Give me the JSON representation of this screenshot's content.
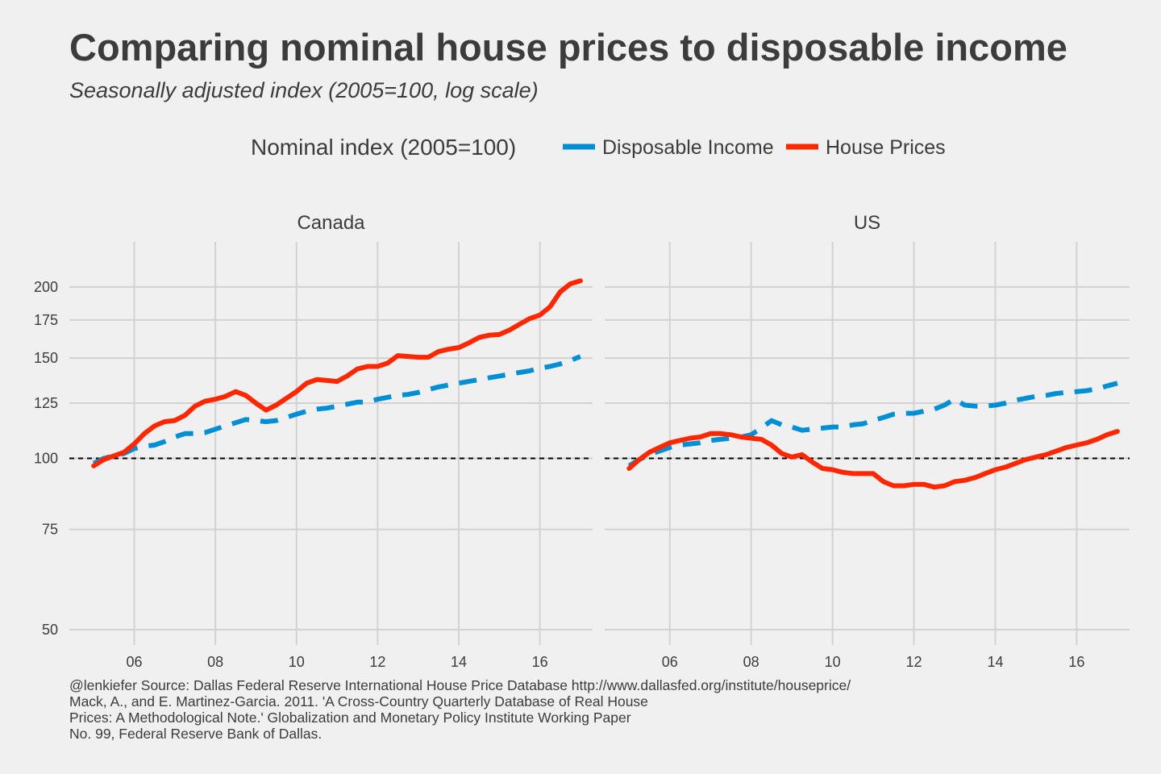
{
  "title": "Comparing nominal house prices to disposable income",
  "subtitle": "Seasonally adjusted index (2005=100, log scale)",
  "legend": {
    "title": "Nominal index (2005=100)",
    "items": [
      {
        "label": "Disposable Income",
        "color": "#008fd5",
        "dash": "dashed"
      },
      {
        "label": "House Prices",
        "color": "#ff2700",
        "dash": "solid"
      }
    ]
  },
  "caption": [
    "@lenkiefer Source: Dallas Federal Reserve International House Price Database  http://www.dallasfed.org/institute/houseprice/",
    "Mack, A., and E. Martinez-Garcia. 2011. 'A Cross-Country Quarterly Database of Real House",
    "Prices: A Methodological Note.' Globalization and Monetary Policy Institute Working Paper",
    "No. 99, Federal Reserve Bank of Dallas."
  ],
  "chart_data": {
    "type": "line",
    "y_scale": "log",
    "ylim": [
      47,
      240
    ],
    "xlim": [
      2004.4,
      2017.3
    ],
    "y_ticks": [
      50,
      75,
      100,
      125,
      150,
      175,
      200
    ],
    "x_ticks": [
      2006,
      2008,
      2010,
      2012,
      2014,
      2016
    ],
    "x_tick_labels": [
      "06",
      "08",
      "10",
      "12",
      "14",
      "16"
    ],
    "reference_line": {
      "y": 100,
      "style": "dashed",
      "color": "#000000"
    },
    "grid": true,
    "legend_position": "top",
    "panels": [
      {
        "name": "Canada",
        "series": [
          {
            "name": "Disposable Income",
            "color": "#008fd5",
            "points": [
              [
                2005.0,
                98
              ],
              [
                2005.25,
                100
              ],
              [
                2005.5,
                101
              ],
              [
                2005.75,
                102
              ],
              [
                2006.0,
                104
              ],
              [
                2006.25,
                105
              ],
              [
                2006.5,
                105.5
              ],
              [
                2006.75,
                107
              ],
              [
                2007.0,
                109
              ],
              [
                2007.25,
                110.5
              ],
              [
                2007.5,
                110.5
              ],
              [
                2007.75,
                111
              ],
              [
                2008.0,
                112.5
              ],
              [
                2008.25,
                114
              ],
              [
                2008.5,
                115.5
              ],
              [
                2008.75,
                117
              ],
              [
                2009.0,
                116.5
              ],
              [
                2009.25,
                116
              ],
              [
                2009.5,
                116.5
              ],
              [
                2009.75,
                118
              ],
              [
                2010.0,
                119.5
              ],
              [
                2010.25,
                121
              ],
              [
                2010.5,
                122
              ],
              [
                2010.75,
                122.5
              ],
              [
                2011.0,
                123.5
              ],
              [
                2011.25,
                124.5
              ],
              [
                2011.5,
                125.5
              ],
              [
                2011.75,
                125.5
              ],
              [
                2012.0,
                127
              ],
              [
                2012.25,
                128
              ],
              [
                2012.5,
                129
              ],
              [
                2012.75,
                129.5
              ],
              [
                2013.0,
                130.5
              ],
              [
                2013.25,
                132
              ],
              [
                2013.5,
                133.5
              ],
              [
                2013.75,
                134.5
              ],
              [
                2014.0,
                135.5
              ],
              [
                2014.25,
                136.5
              ],
              [
                2014.5,
                137.5
              ],
              [
                2014.75,
                138.5
              ],
              [
                2015.0,
                139.5
              ],
              [
                2015.25,
                140.5
              ],
              [
                2015.5,
                141.5
              ],
              [
                2015.75,
                142.5
              ],
              [
                2016.0,
                144
              ],
              [
                2016.25,
                145
              ],
              [
                2016.5,
                146.5
              ],
              [
                2016.75,
                148.5
              ],
              [
                2017.0,
                151
              ]
            ]
          },
          {
            "name": "House Prices",
            "color": "#ff2700",
            "points": [
              [
                2005.0,
                97
              ],
              [
                2005.25,
                99.5
              ],
              [
                2005.5,
                101
              ],
              [
                2005.75,
                102.5
              ],
              [
                2006.0,
                106
              ],
              [
                2006.25,
                110.5
              ],
              [
                2006.5,
                114
              ],
              [
                2006.75,
                116
              ],
              [
                2007.0,
                116.5
              ],
              [
                2007.25,
                119
              ],
              [
                2007.5,
                123.5
              ],
              [
                2007.75,
                126
              ],
              [
                2008.0,
                127
              ],
              [
                2008.25,
                128.5
              ],
              [
                2008.5,
                131
              ],
              [
                2008.75,
                129
              ],
              [
                2009.0,
                125
              ],
              [
                2009.25,
                121.5
              ],
              [
                2009.5,
                124
              ],
              [
                2009.75,
                127.5
              ],
              [
                2010.0,
                131
              ],
              [
                2010.25,
                135.5
              ],
              [
                2010.5,
                137.5
              ],
              [
                2010.75,
                137
              ],
              [
                2011.0,
                136.5
              ],
              [
                2011.25,
                139.5
              ],
              [
                2011.5,
                143.5
              ],
              [
                2011.75,
                145
              ],
              [
                2012.0,
                145
              ],
              [
                2012.25,
                147
              ],
              [
                2012.5,
                151.5
              ],
              [
                2012.75,
                151
              ],
              [
                2013.0,
                150.5
              ],
              [
                2013.25,
                150.5
              ],
              [
                2013.5,
                154
              ],
              [
                2013.75,
                155.5
              ],
              [
                2014.0,
                156.5
              ],
              [
                2014.25,
                159.5
              ],
              [
                2014.5,
                163
              ],
              [
                2014.75,
                164.5
              ],
              [
                2015.0,
                165
              ],
              [
                2015.25,
                168
              ],
              [
                2015.5,
                172
              ],
              [
                2015.75,
                176
              ],
              [
                2016.0,
                178.5
              ],
              [
                2016.25,
                184.5
              ],
              [
                2016.5,
                196
              ],
              [
                2016.75,
                202.5
              ],
              [
                2017.0,
                205
              ]
            ]
          }
        ]
      },
      {
        "name": "US",
        "series": [
          {
            "name": "Disposable Income",
            "color": "#008fd5",
            "points": [
              [
                2005.0,
                97
              ],
              [
                2005.25,
                99.5
              ],
              [
                2005.5,
                101.5
              ],
              [
                2005.75,
                103
              ],
              [
                2006.0,
                104.5
              ],
              [
                2006.25,
                105.5
              ],
              [
                2006.5,
                106
              ],
              [
                2006.75,
                106.5
              ],
              [
                2007.0,
                107.5
              ],
              [
                2007.25,
                108
              ],
              [
                2007.5,
                108.5
              ],
              [
                2007.75,
                109
              ],
              [
                2008.0,
                110
              ],
              [
                2008.25,
                113
              ],
              [
                2008.5,
                116.5
              ],
              [
                2008.75,
                114.5
              ],
              [
                2009.0,
                113.5
              ],
              [
                2009.25,
                112
              ],
              [
                2009.5,
                112.5
              ],
              [
                2009.75,
                113
              ],
              [
                2010.0,
                113.5
              ],
              [
                2010.25,
                113.5
              ],
              [
                2010.5,
                114.5
              ],
              [
                2010.75,
                115
              ],
              [
                2011.0,
                116.5
              ],
              [
                2011.25,
                118
              ],
              [
                2011.5,
                119.5
              ],
              [
                2011.75,
                120
              ],
              [
                2012.0,
                120
              ],
              [
                2012.25,
                121
              ],
              [
                2012.5,
                122
              ],
              [
                2012.75,
                124
              ],
              [
                2013.0,
                127
              ],
              [
                2013.25,
                124
              ],
              [
                2013.5,
                123.5
              ],
              [
                2013.75,
                123.5
              ],
              [
                2014.0,
                124
              ],
              [
                2014.25,
                125
              ],
              [
                2014.5,
                126.5
              ],
              [
                2014.75,
                127.5
              ],
              [
                2015.0,
                128.5
              ],
              [
                2015.25,
                129
              ],
              [
                2015.5,
                130
              ],
              [
                2015.75,
                130.5
              ],
              [
                2016.0,
                131
              ],
              [
                2016.25,
                131.5
              ],
              [
                2016.5,
                132.5
              ],
              [
                2016.75,
                134
              ],
              [
                2017.0,
                135.5
              ]
            ]
          },
          {
            "name": "House Prices",
            "color": "#ff2700",
            "points": [
              [
                2005.0,
                96
              ],
              [
                2005.25,
                99.5
              ],
              [
                2005.5,
                102.5
              ],
              [
                2005.75,
                104.5
              ],
              [
                2006.0,
                106.5
              ],
              [
                2006.25,
                107.5
              ],
              [
                2006.5,
                108.5
              ],
              [
                2006.75,
                109
              ],
              [
                2007.0,
                110.5
              ],
              [
                2007.25,
                110.5
              ],
              [
                2007.5,
                110
              ],
              [
                2007.75,
                109
              ],
              [
                2008.0,
                108.5
              ],
              [
                2008.25,
                108
              ],
              [
                2008.5,
                105.5
              ],
              [
                2008.75,
                102
              ],
              [
                2009.0,
                100.5
              ],
              [
                2009.25,
                101.5
              ],
              [
                2009.5,
                98.5
              ],
              [
                2009.75,
                96
              ],
              [
                2010.0,
                95.5
              ],
              [
                2010.25,
                94.5
              ],
              [
                2010.5,
                94
              ],
              [
                2010.75,
                94
              ],
              [
                2011.0,
                94
              ],
              [
                2011.25,
                91
              ],
              [
                2011.5,
                89.5
              ],
              [
                2011.75,
                89.5
              ],
              [
                2012.0,
                90
              ],
              [
                2012.25,
                90
              ],
              [
                2012.5,
                89
              ],
              [
                2012.75,
                89.5
              ],
              [
                2013.0,
                91
              ],
              [
                2013.25,
                91.5
              ],
              [
                2013.5,
                92.5
              ],
              [
                2013.75,
                94
              ],
              [
                2014.0,
                95.5
              ],
              [
                2014.25,
                96.5
              ],
              [
                2014.5,
                98
              ],
              [
                2014.75,
                99.5
              ],
              [
                2015.0,
                100.5
              ],
              [
                2015.25,
                101.5
              ],
              [
                2015.5,
                103
              ],
              [
                2015.75,
                104.5
              ],
              [
                2016.0,
                105.5
              ],
              [
                2016.25,
                106.5
              ],
              [
                2016.5,
                108
              ],
              [
                2016.75,
                110
              ],
              [
                2017.0,
                111.5
              ]
            ]
          }
        ]
      }
    ]
  }
}
